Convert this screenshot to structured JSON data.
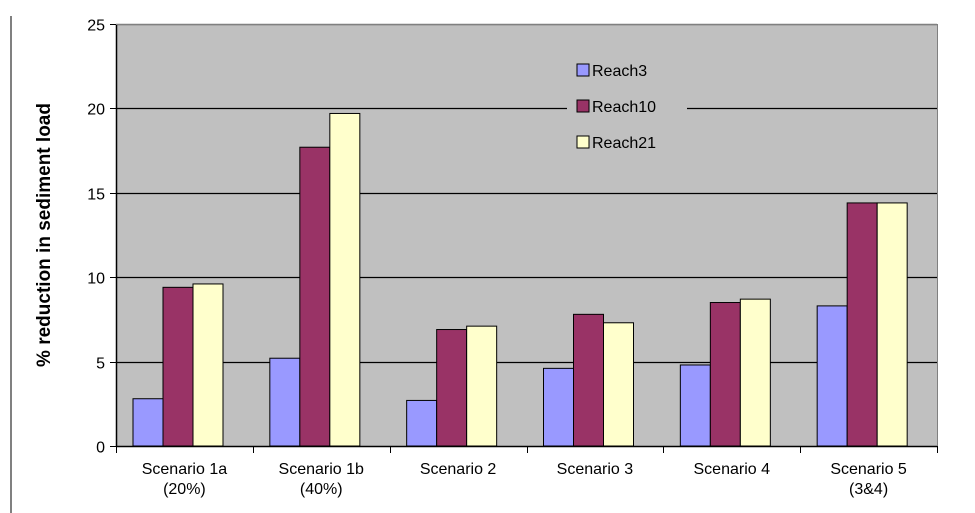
{
  "chart_data": {
    "type": "bar",
    "title": "",
    "xlabel": "",
    "ylabel": "% reduction in sediment load",
    "ylim": [
      0,
      25
    ],
    "yticks": [
      "0",
      "5",
      "10",
      "15",
      "20",
      "25"
    ],
    "grid": true,
    "legend_position": "top-center",
    "categories": [
      [
        "Scenario 1a",
        "(20%)"
      ],
      [
        "Scenario 1b",
        "(40%)"
      ],
      [
        "Scenario 2"
      ],
      [
        "Scenario 3"
      ],
      [
        "Scenario 4"
      ],
      [
        "Scenario 5",
        "(3&4)"
      ]
    ],
    "series": [
      {
        "name": "Reach3",
        "color": "#9999ff",
        "values": [
          2.8,
          5.2,
          2.7,
          4.6,
          4.8,
          8.3
        ]
      },
      {
        "name": "Reach10",
        "color": "#993366",
        "values": [
          9.4,
          17.7,
          6.9,
          7.8,
          8.5,
          14.4
        ]
      },
      {
        "name": "Reach21",
        "color": "#ffffcc",
        "values": [
          9.6,
          19.7,
          7.1,
          7.3,
          8.7,
          14.4
        ]
      }
    ],
    "plot_background": "#c0c0c0"
  }
}
